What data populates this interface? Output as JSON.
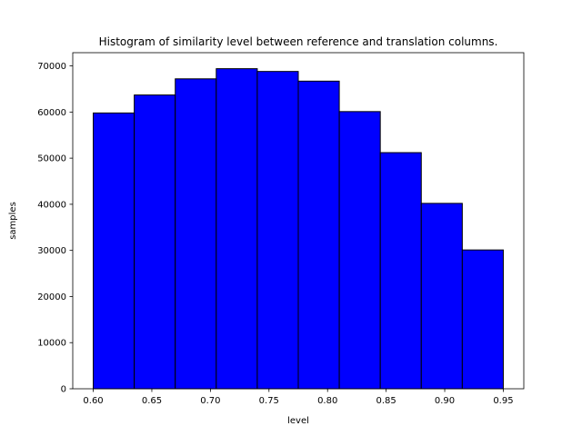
{
  "chart_data": {
    "type": "bar",
    "title": "Histogram of similarity level between reference and translation columns.",
    "xlabel": "level",
    "ylabel": "samples",
    "bin_edges": [
      0.6,
      0.635,
      0.67,
      0.705,
      0.74,
      0.775,
      0.81,
      0.845,
      0.88,
      0.915,
      0.95
    ],
    "values": [
      59800,
      63700,
      67200,
      69400,
      68800,
      66700,
      60100,
      51200,
      40200,
      30100
    ],
    "xlim": [
      0.5825,
      0.9675
    ],
    "ylim": [
      0,
      72870
    ],
    "xticks": [
      0.6,
      0.65,
      0.7,
      0.75,
      0.8,
      0.85,
      0.9,
      0.95
    ],
    "xtick_labels": [
      "0.60",
      "0.65",
      "0.70",
      "0.75",
      "0.80",
      "0.85",
      "0.90",
      "0.95"
    ],
    "yticks": [
      0,
      10000,
      20000,
      30000,
      40000,
      50000,
      60000,
      70000
    ],
    "ytick_labels": [
      "0",
      "10000",
      "20000",
      "30000",
      "40000",
      "50000",
      "60000",
      "70000"
    ],
    "bar_color": "#0000ff",
    "edge_color": "#000000",
    "grid": false,
    "legend": "none"
  }
}
